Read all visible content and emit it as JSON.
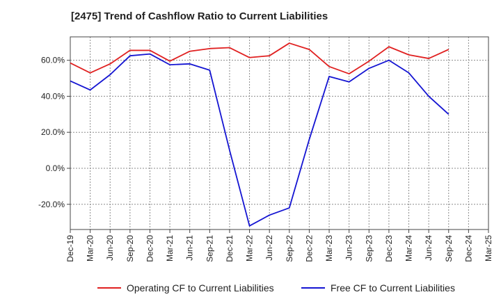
{
  "chart_data": {
    "type": "line",
    "title": "[2475]  Trend of Cashflow Ratio to Current Liabilities",
    "xlabel": "",
    "ylabel": "",
    "categories": [
      "Dec-19",
      "Mar-20",
      "Jun-20",
      "Sep-20",
      "Dec-20",
      "Mar-21",
      "Jun-21",
      "Sep-21",
      "Dec-21",
      "Mar-22",
      "Jun-22",
      "Sep-22",
      "Dec-22",
      "Mar-23",
      "Jun-23",
      "Sep-23",
      "Dec-23",
      "Mar-24",
      "Jun-24",
      "Sep-24",
      "Dec-24",
      "Mar-25"
    ],
    "ylim": [
      -34,
      73
    ],
    "yticks": [
      -20,
      0,
      20,
      40,
      60
    ],
    "ytick_labels": [
      "-20.0%",
      "0.0%",
      "20.0%",
      "40.0%",
      "60.0%"
    ],
    "grid": true,
    "legend_position": "bottom",
    "series": [
      {
        "name": "Operating CF to Current Liabilities",
        "color": "#e02020",
        "values": [
          58.5,
          53,
          58,
          65.5,
          65.5,
          59.5,
          65,
          66.5,
          67,
          61.5,
          62.5,
          69.5,
          66,
          56.5,
          52.5,
          59.5,
          67.5,
          63,
          61,
          66,
          null,
          null
        ]
      },
      {
        "name": "Free CF to Current Liabilities",
        "color": "#1414d2",
        "values": [
          48.5,
          43.5,
          52,
          62.5,
          63.5,
          57.5,
          58,
          54.5,
          10,
          -32,
          -26,
          -22,
          16,
          51,
          48,
          55.5,
          60,
          53,
          40,
          30,
          null,
          null
        ]
      }
    ]
  }
}
